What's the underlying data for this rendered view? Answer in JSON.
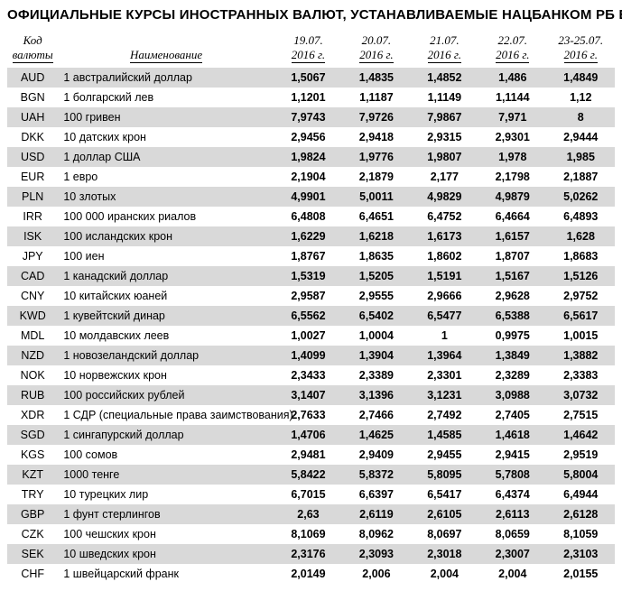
{
  "title": "ОФИЦИАЛЬНЫЕ КУРСЫ ИНОСТРАННЫХ ВАЛЮТ, УСТАНАВЛИВАЕМЫЕ НАЦБАНКОМ РБ ЕЖЕДНЕВНО, руб.",
  "headers": {
    "code_l1": "Код",
    "code_l2": "валюты",
    "name": "Наименование",
    "d1_l1": "19.07.",
    "d1_l2": "2016 г.",
    "d2_l1": "20.07.",
    "d2_l2": "2016 г.",
    "d3_l1": "21.07.",
    "d3_l2": "2016 г.",
    "d4_l1": "22.07.",
    "d4_l2": "2016 г.",
    "d5_l1": "23-25.07.",
    "d5_l2": "2016 г."
  },
  "rows": [
    {
      "code": "AUD",
      "name": "1 австралийский доллар",
      "v": [
        "1,5067",
        "1,4835",
        "1,4852",
        "1,486",
        "1,4849"
      ]
    },
    {
      "code": "BGN",
      "name": "1 болгарский лев",
      "v": [
        "1,1201",
        "1,1187",
        "1,1149",
        "1,1144",
        "1,12"
      ]
    },
    {
      "code": "UAH",
      "name": "100 гривен",
      "v": [
        "7,9743",
        "7,9726",
        "7,9867",
        "7,971",
        "8"
      ]
    },
    {
      "code": "DKK",
      "name": "10 датских крон",
      "v": [
        "2,9456",
        "2,9418",
        "2,9315",
        "2,9301",
        "2,9444"
      ]
    },
    {
      "code": "USD",
      "name": "1 доллар США",
      "v": [
        "1,9824",
        "1,9776",
        "1,9807",
        "1,978",
        "1,985"
      ]
    },
    {
      "code": "EUR",
      "name": "1 евро",
      "v": [
        "2,1904",
        "2,1879",
        "2,177",
        "2,1798",
        "2,1887"
      ]
    },
    {
      "code": "PLN",
      "name": "10 злотых",
      "v": [
        "4,9901",
        "5,0011",
        "4,9829",
        "4,9879",
        "5,0262"
      ]
    },
    {
      "code": "IRR",
      "name": "100 000 иранских риалов",
      "v": [
        "6,4808",
        "6,4651",
        "6,4752",
        "6,4664",
        "6,4893"
      ]
    },
    {
      "code": "ISK",
      "name": "100 исландских крон",
      "v": [
        "1,6229",
        "1,6218",
        "1,6173",
        "1,6157",
        "1,628"
      ]
    },
    {
      "code": "JPY",
      "name": "100 иен",
      "v": [
        "1,8767",
        "1,8635",
        "1,8602",
        "1,8707",
        "1,8683"
      ]
    },
    {
      "code": "CAD",
      "name": "1 канадский доллар",
      "v": [
        "1,5319",
        "1,5205",
        "1,5191",
        "1,5167",
        "1,5126"
      ]
    },
    {
      "code": "CNY",
      "name": "10 китайских юаней",
      "v": [
        "2,9587",
        "2,9555",
        "2,9666",
        "2,9628",
        "2,9752"
      ]
    },
    {
      "code": "KWD",
      "name": "1 кувейтский динар",
      "v": [
        "6,5562",
        "6,5402",
        "6,5477",
        "6,5388",
        "6,5617"
      ]
    },
    {
      "code": "MDL",
      "name": "10 молдавских леев",
      "v": [
        "1,0027",
        "1,0004",
        "1",
        "0,9975",
        "1,0015"
      ]
    },
    {
      "code": "NZD",
      "name": "1 новозеландский доллар",
      "v": [
        "1,4099",
        "1,3904",
        "1,3964",
        "1,3849",
        "1,3882"
      ]
    },
    {
      "code": "NOK",
      "name": "10 норвежских крон",
      "v": [
        "2,3433",
        "2,3389",
        "2,3301",
        "2,3289",
        "2,3383"
      ]
    },
    {
      "code": "RUB",
      "name": "100 российских рублей",
      "v": [
        "3,1407",
        "3,1396",
        "3,1231",
        "3,0988",
        "3,0732"
      ]
    },
    {
      "code": "XDR",
      "name": "1 СДР (специальные права заимствования)",
      "v": [
        "2,7633",
        "2,7466",
        "2,7492",
        "2,7405",
        "2,7515"
      ]
    },
    {
      "code": "SGD",
      "name": "1 сингапурский доллар",
      "v": [
        "1,4706",
        "1,4625",
        "1,4585",
        "1,4618",
        "1,4642"
      ]
    },
    {
      "code": "KGS",
      "name": "100 сомов",
      "v": [
        "2,9481",
        "2,9409",
        "2,9455",
        "2,9415",
        "2,9519"
      ]
    },
    {
      "code": "KZT",
      "name": "1000 тенге",
      "v": [
        "5,8422",
        "5,8372",
        "5,8095",
        "5,7808",
        "5,8004"
      ]
    },
    {
      "code": "TRY",
      "name": "10 турецких лир",
      "v": [
        "6,7015",
        "6,6397",
        "6,5417",
        "6,4374",
        "6,4944"
      ]
    },
    {
      "code": "GBP",
      "name": "1 фунт стерлингов",
      "v": [
        "2,63",
        "2,6119",
        "2,6105",
        "2,6113",
        "2,6128"
      ]
    },
    {
      "code": "CZK",
      "name": "100 чешских крон",
      "v": [
        "8,1069",
        "8,0962",
        "8,0697",
        "8,0659",
        "8,1059"
      ]
    },
    {
      "code": "SEK",
      "name": "10 шведских крон",
      "v": [
        "2,3176",
        "2,3093",
        "2,3018",
        "2,3007",
        "2,3103"
      ]
    },
    {
      "code": "CHF",
      "name": "1 швейцарский франк",
      "v": [
        "2,0149",
        "2,006",
        "2,004",
        "2,004",
        "2,0155"
      ]
    }
  ]
}
